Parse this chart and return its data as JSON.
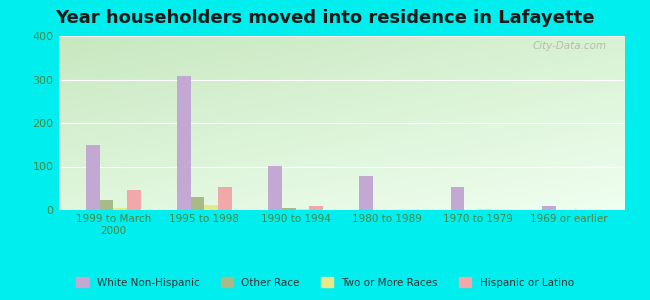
{
  "title": "Year householders moved into residence in Lafayette",
  "categories": [
    "1999 to March\n2000",
    "1995 to 1998",
    "1990 to 1994",
    "1980 to 1989",
    "1970 to 1979",
    "1969 or earlier"
  ],
  "series": {
    "White Non-Hispanic": [
      150,
      307,
      102,
      78,
      53,
      10
    ],
    "Other Race": [
      22,
      29,
      5,
      0,
      0,
      0
    ],
    "Two or More Races": [
      5,
      11,
      3,
      0,
      2,
      0
    ],
    "Hispanic or Latino": [
      46,
      54,
      10,
      0,
      0,
      0
    ]
  },
  "colors": {
    "White Non-Hispanic": "#c4a8d4",
    "Other Race": "#a8ba88",
    "Two or More Races": "#e8e888",
    "Hispanic or Latino": "#f0a8a8"
  },
  "ylim": [
    0,
    400
  ],
  "yticks": [
    0,
    100,
    200,
    300,
    400
  ],
  "bg_color_topleft": "#c8e8c0",
  "bg_color_bottomright": "#f0fff0",
  "outer_background": "#00eeee",
  "watermark": "City-Data.com",
  "title_fontsize": 13,
  "bar_width": 0.15,
  "tick_color": "#448844",
  "label_color": "#336633"
}
